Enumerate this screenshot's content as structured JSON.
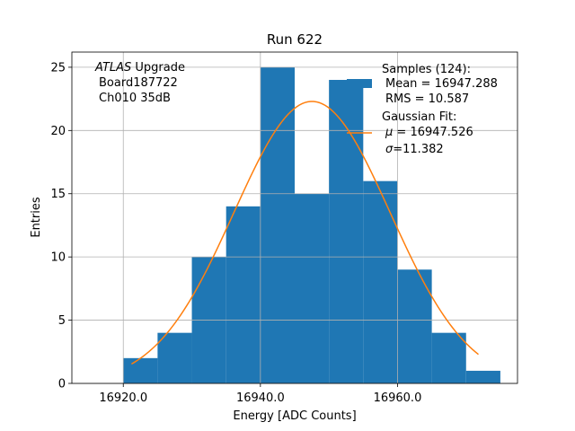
{
  "chart_data": {
    "type": "bar",
    "title": "Run 622",
    "xlabel": "Energy [ADC Counts]",
    "ylabel": "Entries",
    "xlim": [
      16912.5,
      16977.5
    ],
    "ylim": [
      0,
      26.2
    ],
    "grid": true,
    "bar_color": "#1f77b4",
    "fit_color": "#ff7f0e",
    "bins": [
      {
        "x0": 16920,
        "x1": 16925,
        "count": 2
      },
      {
        "x0": 16925,
        "x1": 16930,
        "count": 4
      },
      {
        "x0": 16930,
        "x1": 16935,
        "count": 10
      },
      {
        "x0": 16935,
        "x1": 16940,
        "count": 14
      },
      {
        "x0": 16940,
        "x1": 16945,
        "count": 25
      },
      {
        "x0": 16945,
        "x1": 16950,
        "count": 15
      },
      {
        "x0": 16950,
        "x1": 16955,
        "count": 24
      },
      {
        "x0": 16955,
        "x1": 16960,
        "count": 16
      },
      {
        "x0": 16960,
        "x1": 16965,
        "count": 9
      },
      {
        "x0": 16965,
        "x1": 16970,
        "count": 4
      },
      {
        "x0": 16970,
        "x1": 16975,
        "count": 1
      }
    ],
    "x_ticks": [
      {
        "value": 16920,
        "label": "16920.0"
      },
      {
        "value": 16940,
        "label": "16940.0"
      },
      {
        "value": 16960,
        "label": "16960.0"
      }
    ],
    "y_ticks": [
      {
        "value": 0,
        "label": "0"
      },
      {
        "value": 5,
        "label": "5"
      },
      {
        "value": 10,
        "label": "10"
      },
      {
        "value": 15,
        "label": "15"
      },
      {
        "value": 20,
        "label": "20"
      },
      {
        "value": 25,
        "label": "25"
      }
    ],
    "fit": {
      "mu": 16947.526,
      "sigma": 11.382,
      "amplitude": 22.3,
      "x_range": [
        16921.2,
        16971.8
      ]
    },
    "annotations": {
      "experiment_italic": "ATLAS",
      "experiment_rest": " Upgrade",
      "board": "Board187722",
      "channel": "Ch010 35dB"
    },
    "legend": {
      "placement": "top-right",
      "samples_label": "Samples (124):",
      "mean_line": "Mean = 16947.288",
      "rms_line": "RMS = 10.587",
      "fit_label": "Gaussian Fit:",
      "mu_symbol": "μ",
      "mu_line": " = 16947.526",
      "sigma_symbol": "σ",
      "sigma_line": "=11.382"
    }
  }
}
